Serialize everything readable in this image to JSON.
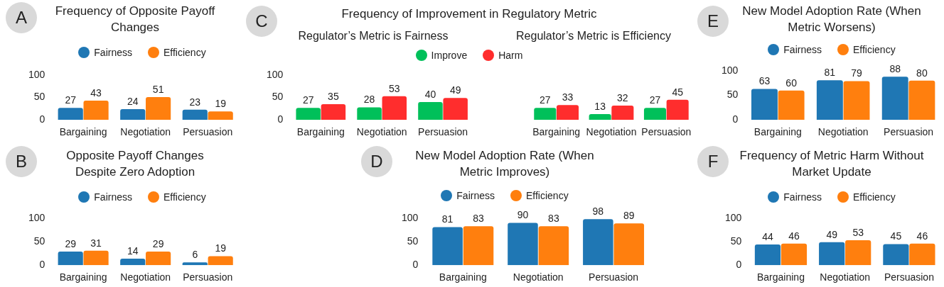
{
  "chart_data": [
    {
      "type": "bar",
      "title": "Frequency of Opposite Payoff Changes",
      "annotations": [
        "A"
      ],
      "categories": [
        "Bargaining",
        "Negotiation",
        "Persuasion"
      ],
      "series": [
        {
          "name": "Fairness",
          "color": "#1f77b4",
          "values": [
            27,
            24,
            23
          ]
        },
        {
          "name": "Efficiency",
          "color": "#ff7f0e",
          "values": [
            43,
            51,
            19
          ]
        }
      ],
      "ylim": [
        0,
        100
      ],
      "yticks": [
        0,
        50,
        100
      ],
      "data_labels": true,
      "legend": "top"
    },
    {
      "type": "bar",
      "title": "Frequency of Improvement in Regulatory Metric",
      "subtitle": "Regulator’s Metric is Fairness",
      "annotations": [
        "C"
      ],
      "categories": [
        "Bargaining",
        "Negotiation",
        "Persuasion"
      ],
      "series": [
        {
          "name": "Improve",
          "color": "#00c05a",
          "values": [
            27,
            28,
            40
          ]
        },
        {
          "name": "Harm",
          "color": "#ff2d2d",
          "values": [
            35,
            53,
            49
          ]
        }
      ],
      "ylim": [
        0,
        100
      ],
      "yticks": [
        0,
        50,
        100
      ],
      "data_labels": true,
      "legend": "top"
    },
    {
      "type": "bar",
      "subtitle": "Regulator’s Metric is Efficiency",
      "categories": [
        "Bargaining",
        "Negotiation",
        "Persuasion"
      ],
      "series": [
        {
          "color": "#00c05a",
          "values": [
            27,
            13,
            27
          ]
        },
        {
          "color": "#ff2d2d",
          "values": [
            33,
            32,
            45
          ]
        }
      ],
      "ylim": [
        0,
        100
      ],
      "yticks": [
        0,
        50,
        100
      ],
      "data_labels": true,
      "tick_labels": "x"
    },
    {
      "type": "bar",
      "title": "New Model Adoption Rate (When Metric Worsens)",
      "annotations": [
        "E"
      ],
      "categories": [
        "Bargaining",
        "Negotiation",
        "Persuasion"
      ],
      "series": [
        {
          "name": "Fairness",
          "color": "#1f77b4",
          "values": [
            63,
            81,
            88
          ]
        },
        {
          "name": "Efficiency",
          "color": "#ff7f0e",
          "values": [
            60,
            79,
            80
          ]
        }
      ],
      "ylim": [
        0,
        100
      ],
      "yticks": [
        0,
        50,
        100
      ],
      "data_labels": true,
      "legend": "top"
    },
    {
      "type": "bar",
      "title": "Opposite Payoff Changes Despite Zero Adoption",
      "annotations": [
        "B"
      ],
      "categories": [
        "Bargaining",
        "Negotiation",
        "Persuasion"
      ],
      "series": [
        {
          "name": "Fairness",
          "color": "#1f77b4",
          "values": [
            29,
            14,
            6
          ]
        },
        {
          "name": "Efficiency",
          "color": "#ff7f0e",
          "values": [
            31,
            29,
            19
          ]
        }
      ],
      "ylim": [
        0,
        100
      ],
      "yticks": [
        0,
        50,
        100
      ],
      "data_labels": true,
      "legend": "top"
    },
    {
      "type": "bar",
      "title": "New Model Adoption Rate (When Metric Improves)",
      "annotations": [
        "D"
      ],
      "categories": [
        "Bargaining",
        "Negotiation",
        "Persuasion"
      ],
      "series": [
        {
          "name": "Fairness",
          "color": "#1f77b4",
          "values": [
            81,
            90,
            98
          ]
        },
        {
          "name": "Efficiency",
          "color": "#ff7f0e",
          "values": [
            83,
            83,
            89
          ]
        }
      ],
      "ylim": [
        0,
        100
      ],
      "yticks": [
        0,
        50,
        100
      ],
      "data_labels": true,
      "legend": "top"
    },
    {
      "type": "bar",
      "title": "Frequency of Metric Harm Without Market Update",
      "annotations": [
        "F"
      ],
      "categories": [
        "Bargaining",
        "Negotiation",
        "Persuasion"
      ],
      "series": [
        {
          "name": "Fairness",
          "color": "#1f77b4",
          "values": [
            44,
            49,
            45
          ]
        },
        {
          "name": "Efficiency",
          "color": "#ff7f0e",
          "values": [
            46,
            53,
            46
          ]
        }
      ],
      "ylim": [
        0,
        100
      ],
      "yticks": [
        0,
        50,
        100
      ],
      "data_labels": true,
      "legend": "top"
    }
  ]
}
